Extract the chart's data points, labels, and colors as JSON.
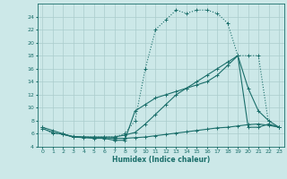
{
  "bg_color": "#cce8e8",
  "grid_color": "#aacccc",
  "line_color": "#1a6e6a",
  "xlabel": "Humidex (Indice chaleur)",
  "xlim": [
    -0.5,
    23.5
  ],
  "ylim": [
    4,
    26
  ],
  "yticks": [
    4,
    6,
    8,
    10,
    12,
    14,
    16,
    18,
    20,
    22,
    24
  ],
  "xticks": [
    0,
    1,
    2,
    3,
    4,
    5,
    6,
    7,
    8,
    9,
    10,
    11,
    12,
    13,
    14,
    15,
    16,
    17,
    18,
    19,
    20,
    21,
    22,
    23
  ],
  "line1_x": [
    0,
    1,
    2,
    3,
    4,
    5,
    6,
    7,
    8,
    9,
    10,
    11,
    12,
    13,
    14,
    15,
    16,
    17,
    18,
    19,
    20,
    21,
    22,
    23
  ],
  "line1_y": [
    7,
    6,
    6,
    5.5,
    5.5,
    5.5,
    5.5,
    5.5,
    6,
    8,
    16,
    22,
    23.5,
    25,
    24.5,
    25,
    25,
    24.5,
    23,
    18,
    18,
    18,
    7.5,
    7
  ],
  "line2_x": [
    0,
    1,
    2,
    3,
    4,
    5,
    6,
    7,
    8,
    9,
    10,
    11,
    12,
    13,
    14,
    15,
    16,
    17,
    18,
    19,
    20,
    21,
    22,
    23
  ],
  "line2_y": [
    7,
    6.5,
    6,
    5.5,
    5.5,
    5.5,
    5.5,
    5.5,
    5.8,
    6.2,
    7.5,
    9,
    10.5,
    12,
    13,
    14,
    15,
    16,
    17,
    18,
    13,
    9.5,
    8,
    7
  ],
  "line3_x": [
    0,
    1,
    2,
    3,
    4,
    5,
    6,
    7,
    8,
    9,
    10,
    11,
    12,
    13,
    14,
    15,
    16,
    17,
    18,
    19,
    20,
    21,
    22,
    23
  ],
  "line3_y": [
    6.8,
    6.2,
    5.9,
    5.6,
    5.5,
    5.4,
    5.4,
    5.3,
    5.3,
    5.4,
    5.5,
    5.7,
    5.9,
    6.1,
    6.3,
    6.5,
    6.7,
    6.9,
    7.0,
    7.2,
    7.4,
    7.5,
    7.3,
    7.0
  ],
  "line4_x": [
    2,
    3,
    4,
    5,
    6,
    7,
    8,
    9,
    10,
    11,
    12,
    13,
    14,
    15,
    16,
    17,
    18,
    19,
    20,
    21,
    22,
    23
  ],
  "line4_y": [
    5.9,
    5.5,
    5.4,
    5.3,
    5.3,
    5.0,
    5.0,
    9.5,
    10.5,
    11.5,
    12.0,
    12.5,
    13.0,
    13.5,
    14.0,
    15.0,
    16.5,
    18,
    7.0,
    7.0,
    7.5,
    7.0
  ]
}
